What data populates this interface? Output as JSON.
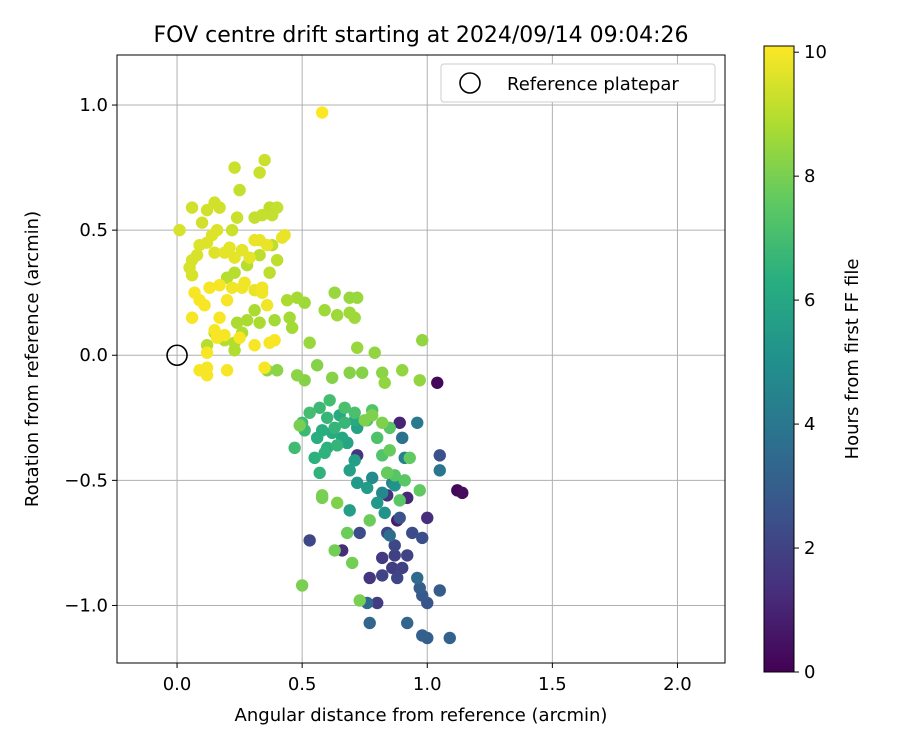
{
  "chart_data": {
    "type": "scatter",
    "title": "FOV centre drift starting at 2024/09/14 09:04:26",
    "xlabel": "Angular distance from reference (arcmin)",
    "ylabel": "Rotation from reference (arcmin)",
    "xlim": [
      -0.24,
      2.19
    ],
    "ylim": [
      -1.23,
      1.2
    ],
    "xticks": [
      0.0,
      0.5,
      1.0,
      1.5,
      2.0
    ],
    "xtick_labels": [
      "0.0",
      "0.5",
      "1.0",
      "1.5",
      "2.0"
    ],
    "yticks": [
      -1.0,
      -0.5,
      0.0,
      0.5,
      1.0
    ],
    "ytick_labels": [
      "−1.0",
      "−0.5",
      "0.0",
      "0.5",
      "1.0"
    ],
    "grid": true,
    "legend": {
      "position": "top-right",
      "entries": [
        "Reference platepar"
      ]
    },
    "reference_point": {
      "x": 0.0,
      "y": 0.0,
      "label": "Reference platepar",
      "marker": "hollow-circle"
    },
    "colorbar": {
      "label": "Hours from first FF file",
      "colormap": "viridis",
      "range": [
        0,
        10.1
      ],
      "ticks": [
        0,
        2,
        4,
        6,
        8,
        10
      ],
      "tick_labels": [
        "0",
        "2",
        "4",
        "6",
        "8",
        "10"
      ]
    },
    "points": [
      {
        "x": 1.04,
        "y": -0.11,
        "t": 0.2
      },
      {
        "x": 1.12,
        "y": -0.54,
        "t": 0.2
      },
      {
        "x": 1.14,
        "y": -0.55,
        "t": 0.3
      },
      {
        "x": 0.88,
        "y": -0.66,
        "t": 0.8
      },
      {
        "x": 0.89,
        "y": -0.27,
        "t": 1.0
      },
      {
        "x": 0.92,
        "y": -0.57,
        "t": 1.1
      },
      {
        "x": 0.66,
        "y": -0.78,
        "t": 1.3
      },
      {
        "x": 0.68,
        "y": -0.35,
        "t": 1.2
      },
      {
        "x": 0.72,
        "y": -0.4,
        "t": 1.5
      },
      {
        "x": 1.0,
        "y": -0.65,
        "t": 1.3
      },
      {
        "x": 0.84,
        "y": -0.56,
        "t": 1.4
      },
      {
        "x": 0.77,
        "y": -0.89,
        "t": 1.6
      },
      {
        "x": 0.82,
        "y": -0.81,
        "t": 1.7
      },
      {
        "x": 0.86,
        "y": -0.85,
        "t": 1.8
      },
      {
        "x": 0.8,
        "y": -0.99,
        "t": 1.8
      },
      {
        "x": 0.87,
        "y": -0.8,
        "t": 1.9
      },
      {
        "x": 0.9,
        "y": -0.85,
        "t": 1.9
      },
      {
        "x": 0.92,
        "y": -0.8,
        "t": 2.0
      },
      {
        "x": 0.82,
        "y": -0.88,
        "t": 2.0
      },
      {
        "x": 0.88,
        "y": -0.89,
        "t": 2.1
      },
      {
        "x": 0.84,
        "y": -0.71,
        "t": 2.1
      },
      {
        "x": 0.87,
        "y": -0.76,
        "t": 2.2
      },
      {
        "x": 0.53,
        "y": -0.74,
        "t": 2.2
      },
      {
        "x": 0.73,
        "y": -0.71,
        "t": 2.3
      },
      {
        "x": 0.94,
        "y": -0.71,
        "t": 2.3
      },
      {
        "x": 0.98,
        "y": -0.73,
        "t": 2.4
      },
      {
        "x": 1.05,
        "y": -0.4,
        "t": 2.5
      },
      {
        "x": 0.89,
        "y": -0.65,
        "t": 2.6
      },
      {
        "x": 1.0,
        "y": -0.99,
        "t": 2.7
      },
      {
        "x": 0.98,
        "y": -0.96,
        "t": 2.8
      },
      {
        "x": 1.05,
        "y": -0.94,
        "t": 2.9
      },
      {
        "x": 0.97,
        "y": -0.93,
        "t": 3.0
      },
      {
        "x": 1.0,
        "y": -1.13,
        "t": 3.0
      },
      {
        "x": 0.98,
        "y": -1.12,
        "t": 3.1
      },
      {
        "x": 1.09,
        "y": -1.13,
        "t": 3.2
      },
      {
        "x": 0.92,
        "y": -1.07,
        "t": 3.3
      },
      {
        "x": 0.77,
        "y": -1.07,
        "t": 3.3
      },
      {
        "x": 0.76,
        "y": -0.99,
        "t": 3.4
      },
      {
        "x": 0.96,
        "y": -0.89,
        "t": 3.5
      },
      {
        "x": 0.85,
        "y": -0.72,
        "t": 3.6
      },
      {
        "x": 0.9,
        "y": -0.33,
        "t": 3.8
      },
      {
        "x": 1.05,
        "y": -0.46,
        "t": 3.9
      },
      {
        "x": 0.96,
        "y": -0.27,
        "t": 4.1
      },
      {
        "x": 0.91,
        "y": -0.41,
        "t": 4.3
      },
      {
        "x": 0.86,
        "y": -0.51,
        "t": 4.5
      },
      {
        "x": 0.82,
        "y": -0.55,
        "t": 4.7
      },
      {
        "x": 0.78,
        "y": -0.49,
        "t": 4.8
      },
      {
        "x": 0.84,
        "y": -0.47,
        "t": 5.0
      },
      {
        "x": 0.87,
        "y": -0.52,
        "t": 5.1
      },
      {
        "x": 0.83,
        "y": -0.63,
        "t": 5.2
      },
      {
        "x": 0.8,
        "y": -0.59,
        "t": 5.3
      },
      {
        "x": 0.72,
        "y": -0.51,
        "t": 5.4
      },
      {
        "x": 0.76,
        "y": -0.53,
        "t": 5.5
      },
      {
        "x": 0.69,
        "y": -0.62,
        "t": 5.6
      },
      {
        "x": 0.71,
        "y": -0.42,
        "t": 5.6
      },
      {
        "x": 0.69,
        "y": -0.46,
        "t": 5.7
      },
      {
        "x": 0.72,
        "y": -0.29,
        "t": 5.8
      },
      {
        "x": 0.68,
        "y": -0.35,
        "t": 5.9
      },
      {
        "x": 0.66,
        "y": -0.33,
        "t": 6.0
      },
      {
        "x": 0.71,
        "y": -0.26,
        "t": 6.1
      },
      {
        "x": 0.65,
        "y": -0.24,
        "t": 6.1
      },
      {
        "x": 0.62,
        "y": -0.31,
        "t": 6.2
      },
      {
        "x": 0.58,
        "y": -0.3,
        "t": 6.3
      },
      {
        "x": 0.56,
        "y": -0.33,
        "t": 6.3
      },
      {
        "x": 0.6,
        "y": -0.37,
        "t": 6.4
      },
      {
        "x": 0.55,
        "y": -0.41,
        "t": 6.4
      },
      {
        "x": 0.57,
        "y": -0.47,
        "t": 6.5
      },
      {
        "x": 0.59,
        "y": -0.39,
        "t": 6.5
      },
      {
        "x": 0.63,
        "y": -0.29,
        "t": 6.6
      },
      {
        "x": 0.64,
        "y": -0.36,
        "t": 6.6
      },
      {
        "x": 0.67,
        "y": -0.27,
        "t": 6.7
      },
      {
        "x": 0.6,
        "y": -0.25,
        "t": 6.7
      },
      {
        "x": 0.57,
        "y": -0.21,
        "t": 6.8
      },
      {
        "x": 0.51,
        "y": -0.3,
        "t": 6.8
      },
      {
        "x": 0.47,
        "y": -0.37,
        "t": 6.9
      },
      {
        "x": 0.5,
        "y": -0.27,
        "t": 6.9
      },
      {
        "x": 0.53,
        "y": -0.23,
        "t": 7.0
      },
      {
        "x": 0.61,
        "y": -0.18,
        "t": 7.0
      },
      {
        "x": 0.67,
        "y": -0.21,
        "t": 7.1
      },
      {
        "x": 0.71,
        "y": -0.23,
        "t": 7.1
      },
      {
        "x": 0.76,
        "y": -0.26,
        "t": 7.2
      },
      {
        "x": 0.8,
        "y": -0.33,
        "t": 7.2
      },
      {
        "x": 0.78,
        "y": -0.22,
        "t": 7.3
      },
      {
        "x": 0.82,
        "y": -0.4,
        "t": 7.3
      },
      {
        "x": 0.85,
        "y": -0.29,
        "t": 7.4
      },
      {
        "x": 0.87,
        "y": -0.48,
        "t": 7.4
      },
      {
        "x": 0.89,
        "y": -0.58,
        "t": 7.5
      },
      {
        "x": 0.91,
        "y": -0.5,
        "t": 7.5
      },
      {
        "x": 0.97,
        "y": -0.54,
        "t": 7.6
      },
      {
        "x": 0.93,
        "y": -0.41,
        "t": 7.6
      },
      {
        "x": 0.85,
        "y": -0.38,
        "t": 7.7
      },
      {
        "x": 0.84,
        "y": -0.47,
        "t": 7.7
      },
      {
        "x": 0.77,
        "y": -0.66,
        "t": 7.8
      },
      {
        "x": 0.68,
        "y": -0.71,
        "t": 7.8
      },
      {
        "x": 0.63,
        "y": -0.78,
        "t": 7.9
      },
      {
        "x": 0.7,
        "y": -0.83,
        "t": 7.9
      },
      {
        "x": 0.73,
        "y": -0.98,
        "t": 8.0
      },
      {
        "x": 0.5,
        "y": -0.92,
        "t": 8.0
      },
      {
        "x": 0.49,
        "y": -0.28,
        "t": 8.0
      },
      {
        "x": 0.58,
        "y": -0.56,
        "t": 8.0
      },
      {
        "x": 0.58,
        "y": -0.57,
        "t": 8.0
      },
      {
        "x": 0.64,
        "y": -0.59,
        "t": 8.1
      },
      {
        "x": 0.75,
        "y": -0.26,
        "t": 8.1
      },
      {
        "x": 0.78,
        "y": -0.24,
        "t": 8.1
      },
      {
        "x": 0.82,
        "y": -0.27,
        "t": 8.1
      },
      {
        "x": 0.74,
        "y": -0.07,
        "t": 8.2
      },
      {
        "x": 0.69,
        "y": -0.07,
        "t": 8.2
      },
      {
        "x": 0.62,
        "y": -0.09,
        "t": 8.2
      },
      {
        "x": 0.56,
        "y": -0.04,
        "t": 8.2
      },
      {
        "x": 0.51,
        "y": -0.1,
        "t": 8.2
      },
      {
        "x": 0.48,
        "y": -0.08,
        "t": 8.3
      },
      {
        "x": 0.4,
        "y": -0.06,
        "t": 8.3
      },
      {
        "x": 0.36,
        "y": -0.06,
        "t": 8.3
      },
      {
        "x": 0.82,
        "y": -0.07,
        "t": 8.3
      },
      {
        "x": 0.83,
        "y": -0.11,
        "t": 8.4
      },
      {
        "x": 0.9,
        "y": -0.06,
        "t": 8.4
      },
      {
        "x": 0.97,
        "y": -0.1,
        "t": 8.4
      },
      {
        "x": 0.98,
        "y": 0.06,
        "t": 8.4
      },
      {
        "x": 0.79,
        "y": 0.01,
        "t": 8.4
      },
      {
        "x": 0.72,
        "y": 0.03,
        "t": 8.5
      },
      {
        "x": 0.53,
        "y": 0.05,
        "t": 8.5
      },
      {
        "x": 0.72,
        "y": 0.23,
        "t": 8.5
      },
      {
        "x": 0.69,
        "y": 0.23,
        "t": 8.5
      },
      {
        "x": 0.63,
        "y": 0.25,
        "t": 8.5
      },
      {
        "x": 0.59,
        "y": 0.18,
        "t": 8.6
      },
      {
        "x": 0.64,
        "y": 0.16,
        "t": 8.6
      },
      {
        "x": 0.71,
        "y": 0.15,
        "t": 8.6
      },
      {
        "x": 0.69,
        "y": 0.17,
        "t": 8.6
      },
      {
        "x": 0.51,
        "y": 0.21,
        "t": 8.6
      },
      {
        "x": 0.48,
        "y": 0.23,
        "t": 8.7
      },
      {
        "x": 0.45,
        "y": 0.15,
        "t": 8.7
      },
      {
        "x": 0.46,
        "y": 0.11,
        "t": 8.7
      },
      {
        "x": 0.39,
        "y": 0.14,
        "t": 8.7
      },
      {
        "x": 0.44,
        "y": 0.22,
        "t": 8.8
      },
      {
        "x": 0.33,
        "y": 0.13,
        "t": 8.8
      },
      {
        "x": 0.31,
        "y": 0.18,
        "t": 8.8
      },
      {
        "x": 0.28,
        "y": 0.14,
        "t": 8.8
      },
      {
        "x": 0.24,
        "y": 0.13,
        "t": 8.8
      },
      {
        "x": 0.26,
        "y": 0.09,
        "t": 8.9
      },
      {
        "x": 0.23,
        "y": 0.05,
        "t": 8.9
      },
      {
        "x": 0.23,
        "y": 0.02,
        "t": 8.9
      },
      {
        "x": 0.19,
        "y": 0.06,
        "t": 8.9
      },
      {
        "x": 0.15,
        "y": 0.09,
        "t": 8.9
      },
      {
        "x": 0.12,
        "y": 0.04,
        "t": 9.0
      },
      {
        "x": 0.2,
        "y": 0.31,
        "t": 9.0
      },
      {
        "x": 0.23,
        "y": 0.33,
        "t": 9.0
      },
      {
        "x": 0.26,
        "y": 0.42,
        "t": 9.0
      },
      {
        "x": 0.28,
        "y": 0.36,
        "t": 9.0
      },
      {
        "x": 0.33,
        "y": 0.4,
        "t": 9.1
      },
      {
        "x": 0.37,
        "y": 0.33,
        "t": 9.1
      },
      {
        "x": 0.4,
        "y": 0.38,
        "t": 9.1
      },
      {
        "x": 0.38,
        "y": 0.44,
        "t": 9.1
      },
      {
        "x": 0.37,
        "y": 0.59,
        "t": 9.1
      },
      {
        "x": 0.4,
        "y": 0.59,
        "t": 9.2
      },
      {
        "x": 0.38,
        "y": 0.56,
        "t": 9.2
      },
      {
        "x": 0.34,
        "y": 0.56,
        "t": 9.2
      },
      {
        "x": 0.31,
        "y": 0.55,
        "t": 9.2
      },
      {
        "x": 0.25,
        "y": 0.66,
        "t": 9.2
      },
      {
        "x": 0.23,
        "y": 0.75,
        "t": 9.3
      },
      {
        "x": 0.35,
        "y": 0.78,
        "t": 9.3
      },
      {
        "x": 0.33,
        "y": 0.73,
        "t": 9.3
      },
      {
        "x": 0.24,
        "y": 0.55,
        "t": 9.3
      },
      {
        "x": 0.22,
        "y": 0.5,
        "t": 9.3
      },
      {
        "x": 0.17,
        "y": 0.59,
        "t": 9.4
      },
      {
        "x": 0.15,
        "y": 0.61,
        "t": 9.4
      },
      {
        "x": 0.12,
        "y": 0.58,
        "t": 9.4
      },
      {
        "x": 0.1,
        "y": 0.53,
        "t": 9.4
      },
      {
        "x": 0.06,
        "y": 0.59,
        "t": 9.4
      },
      {
        "x": 0.01,
        "y": 0.5,
        "t": 9.5
      },
      {
        "x": 0.06,
        "y": 0.38,
        "t": 9.5
      },
      {
        "x": 0.08,
        "y": 0.4,
        "t": 9.5
      },
      {
        "x": 0.06,
        "y": 0.32,
        "t": 9.5
      },
      {
        "x": 0.05,
        "y": 0.35,
        "t": 9.5
      },
      {
        "x": 0.09,
        "y": 0.44,
        "t": 9.6
      },
      {
        "x": 0.12,
        "y": 0.45,
        "t": 9.6
      },
      {
        "x": 0.14,
        "y": 0.48,
        "t": 9.6
      },
      {
        "x": 0.16,
        "y": 0.5,
        "t": 9.6
      },
      {
        "x": 0.15,
        "y": 0.41,
        "t": 9.6
      },
      {
        "x": 0.19,
        "y": 0.41,
        "t": 9.7
      },
      {
        "x": 0.21,
        "y": 0.43,
        "t": 9.7
      },
      {
        "x": 0.23,
        "y": 0.39,
        "t": 9.7
      },
      {
        "x": 0.26,
        "y": 0.42,
        "t": 9.7
      },
      {
        "x": 0.29,
        "y": 0.39,
        "t": 9.7
      },
      {
        "x": 0.31,
        "y": 0.46,
        "t": 9.8
      },
      {
        "x": 0.33,
        "y": 0.46,
        "t": 9.8
      },
      {
        "x": 0.36,
        "y": 0.44,
        "t": 9.8
      },
      {
        "x": 0.42,
        "y": 0.47,
        "t": 9.8
      },
      {
        "x": 0.43,
        "y": 0.48,
        "t": 9.8
      },
      {
        "x": 0.31,
        "y": 0.26,
        "t": 9.8
      },
      {
        "x": 0.34,
        "y": 0.25,
        "t": 9.9
      },
      {
        "x": 0.36,
        "y": 0.2,
        "t": 9.9
      },
      {
        "x": 0.34,
        "y": 0.27,
        "t": 9.9
      },
      {
        "x": 0.27,
        "y": 0.29,
        "t": 9.9
      },
      {
        "x": 0.26,
        "y": 0.27,
        "t": 9.9
      },
      {
        "x": 0.22,
        "y": 0.27,
        "t": 9.9
      },
      {
        "x": 0.2,
        "y": 0.22,
        "t": 10.0
      },
      {
        "x": 0.17,
        "y": 0.28,
        "t": 10.0
      },
      {
        "x": 0.13,
        "y": 0.27,
        "t": 10.0
      },
      {
        "x": 0.07,
        "y": 0.25,
        "t": 10.0
      },
      {
        "x": 0.09,
        "y": 0.22,
        "t": 10.0
      },
      {
        "x": 0.11,
        "y": 0.2,
        "t": 10.0
      },
      {
        "x": 0.06,
        "y": 0.15,
        "t": 10.0
      },
      {
        "x": 0.17,
        "y": 0.15,
        "t": 10.0
      },
      {
        "x": 0.15,
        "y": 0.1,
        "t": 10.0
      },
      {
        "x": 0.19,
        "y": 0.08,
        "t": 10.0
      },
      {
        "x": 0.16,
        "y": 0.07,
        "t": 10.0
      },
      {
        "x": 0.25,
        "y": 0.07,
        "t": 10.0
      },
      {
        "x": 0.31,
        "y": 0.04,
        "t": 10.0
      },
      {
        "x": 0.37,
        "y": 0.05,
        "t": 10.0
      },
      {
        "x": 0.39,
        "y": 0.06,
        "t": 10.0
      },
      {
        "x": 0.2,
        "y": -0.06,
        "t": 10.0
      },
      {
        "x": 0.09,
        "y": -0.06,
        "t": 10.0
      },
      {
        "x": 0.12,
        "y": -0.08,
        "t": 10.0
      },
      {
        "x": 0.12,
        "y": -0.05,
        "t": 10.0
      },
      {
        "x": 0.12,
        "y": 0.01,
        "t": 10.0
      },
      {
        "x": 0.35,
        "y": -0.05,
        "t": 10.0
      },
      {
        "x": 0.58,
        "y": 0.97,
        "t": 10.1
      }
    ]
  }
}
